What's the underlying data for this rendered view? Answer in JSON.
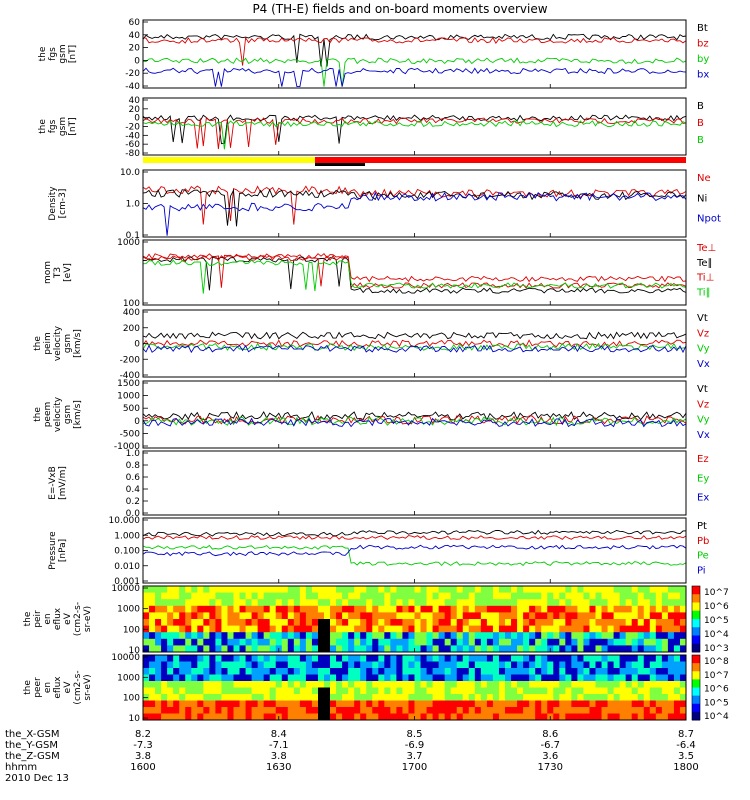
{
  "title": "P4 (TH-E) fields and on-board moments overview",
  "chart_data": {
    "type": "line",
    "x_time": {
      "start": "1600",
      "end": "1800",
      "tick_labels": [
        "1600",
        "1630",
        "1700",
        "1730",
        "1800"
      ]
    },
    "footer": {
      "rows": [
        {
          "label": "the_X-GSM",
          "values": [
            "8.2",
            "8.4",
            "8.5",
            "8.6",
            "8.7"
          ]
        },
        {
          "label": "the_Y-GSM",
          "values": [
            "-7.3",
            "-7.1",
            "-6.9",
            "-6.7",
            "-6.4"
          ]
        },
        {
          "label": "the_Z-GSM",
          "values": [
            "3.8",
            "3.8",
            "3.7",
            "3.6",
            "3.5"
          ]
        },
        {
          "label": "hhmm",
          "values": [
            "1600",
            "1630",
            "1700",
            "1730",
            "1800"
          ]
        }
      ],
      "date": "2010 Dec 13"
    },
    "panels": [
      {
        "id": "fgs_gsm_1",
        "ylabel": "the\nfgs\ngsm\n[nT]",
        "ticks": [
          "60",
          "40",
          "20",
          "0",
          "-20",
          "-40"
        ],
        "ylim": [
          -40,
          60
        ],
        "series": [
          {
            "name": "Bt",
            "color": "#000000"
          },
          {
            "name": "bz",
            "color": "#dd0000"
          },
          {
            "name": "by",
            "color": "#00cc00"
          },
          {
            "name": "bx",
            "color": "#0000cc"
          }
        ]
      },
      {
        "id": "fgs_gsm_2",
        "ylabel": "the\nfgs\ngsm\n[nT]",
        "ticks": [
          "40",
          "20",
          "0",
          "-20",
          "-40",
          "-60",
          "-80"
        ],
        "ylim": [
          -80,
          40
        ],
        "series": [
          {
            "name": "B",
            "color": "#000000"
          },
          {
            "name": "B",
            "color": "#dd0000"
          },
          {
            "name": "B",
            "color": "#00cc00"
          }
        ]
      },
      {
        "id": "density",
        "ylabel": "Density\n[cm-3]",
        "ticks": [
          "10.0",
          "1.0",
          "0.1"
        ],
        "ylim": [
          0.1,
          10
        ],
        "scale": "log",
        "series": [
          {
            "name": "Ne",
            "color": "#dd0000"
          },
          {
            "name": "Ni",
            "color": "#000000"
          },
          {
            "name": "Npot",
            "color": "#0000cc"
          }
        ]
      },
      {
        "id": "temperature",
        "ylabel": "mom\nT3\n[eV]",
        "ticks": [
          "1000",
          "100"
        ],
        "ylim": [
          30,
          10000
        ],
        "scale": "log",
        "series": [
          {
            "name": "Te⊥",
            "color": "#dd0000"
          },
          {
            "name": "Te∥",
            "color": "#000000"
          },
          {
            "name": "Ti⊥",
            "color": "#dd0000"
          },
          {
            "name": "Ti∥",
            "color": "#00cc00"
          }
        ]
      },
      {
        "id": "peim_velocity",
        "ylabel": "the\npeim\nvelocity\ngsm\n[km/s]",
        "ticks": [
          "400",
          "200",
          "0",
          "-200",
          "-400"
        ],
        "ylim": [
          -400,
          400
        ],
        "series": [
          {
            "name": "Vt",
            "color": "#000000"
          },
          {
            "name": "Vz",
            "color": "#dd0000"
          },
          {
            "name": "Vy",
            "color": "#00cc00"
          },
          {
            "name": "Vx",
            "color": "#0000cc"
          }
        ]
      },
      {
        "id": "peem_velocity",
        "ylabel": "the\npeem\nvelocity\ngsm\n[km/s]",
        "ticks": [
          "1500",
          "1000",
          "500",
          "0",
          "-500",
          "-1000"
        ],
        "ylim": [
          -1000,
          1500
        ],
        "series": [
          {
            "name": "Vt",
            "color": "#000000"
          },
          {
            "name": "Vz",
            "color": "#dd0000"
          },
          {
            "name": "Vy",
            "color": "#00cc00"
          },
          {
            "name": "Vx",
            "color": "#0000cc"
          }
        ]
      },
      {
        "id": "efield",
        "ylabel": "E=-VxB\n[mV/m]",
        "ticks": [
          "1.0",
          "0.8",
          "0.6",
          "0.4",
          "0.2",
          "0.0"
        ],
        "ylim": [
          0,
          1
        ],
        "series": [
          {
            "name": "Ez",
            "color": "#dd0000"
          },
          {
            "name": "Ey",
            "color": "#00cc00"
          },
          {
            "name": "Ex",
            "color": "#0000cc"
          }
        ]
      },
      {
        "id": "pressure",
        "ylabel": "Pressure\n[nPa]",
        "ticks": [
          "10.000",
          "1.000",
          "0.100",
          "0.010",
          "0.001"
        ],
        "ylim": [
          0.001,
          10
        ],
        "scale": "log",
        "series": [
          {
            "name": "Pt",
            "color": "#000000"
          },
          {
            "name": "Pb",
            "color": "#dd0000"
          },
          {
            "name": "Pe",
            "color": "#00cc00"
          },
          {
            "name": "Pi",
            "color": "#0000cc"
          }
        ]
      },
      {
        "id": "peir_eflux",
        "type": "heatmap",
        "ylabel": "the\npeir\nen\neflux\neV\n(cm2-s-\nsr-eV)",
        "ticks": [
          "10000",
          "1000",
          "100",
          "10"
        ],
        "colorbar": [
          "10^7",
          "10^6",
          "10^5",
          "10^4",
          "10^3"
        ]
      },
      {
        "id": "peer_eflux",
        "type": "heatmap",
        "ylabel": "the\npeer\nen\neflux\neV\n(cm2-s-\nsr-eV)",
        "ticks": [
          "10000",
          "1000",
          "100",
          "10"
        ],
        "colorbar": [
          "10^8",
          "10^7",
          "10^6",
          "10^5",
          "10^4"
        ]
      }
    ]
  }
}
